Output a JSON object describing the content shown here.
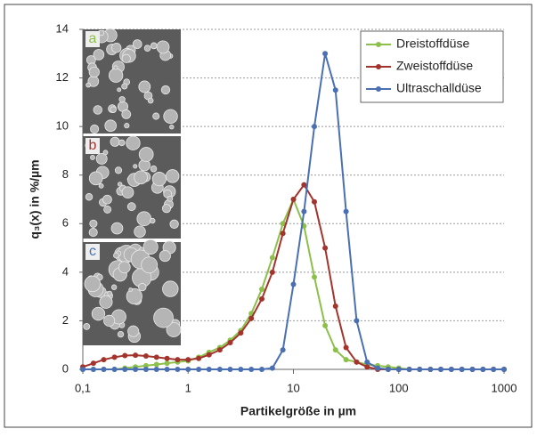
{
  "chart_data": {
    "type": "line",
    "x_label": "Partikelgröße in µm",
    "y_label": "q₃(x) in %/µm",
    "x": [
      0.1,
      0.126,
      0.158,
      0.2,
      0.251,
      0.316,
      0.398,
      0.501,
      0.631,
      0.794,
      1,
      1.26,
      1.58,
      2,
      2.51,
      3.16,
      3.98,
      5.01,
      6.31,
      7.94,
      10,
      12.6,
      15.8,
      20,
      25.1,
      31.6,
      39.8,
      50.1,
      63.1,
      79.4,
      100,
      126,
      158,
      200,
      251,
      316,
      398,
      501,
      631,
      794,
      1000
    ],
    "series": [
      {
        "name": "Dreistoffdüse",
        "color": "#8dbf4b",
        "values": [
          0,
          0,
          0,
          0,
          0.05,
          0.1,
          0.15,
          0.2,
          0.25,
          0.3,
          0.35,
          0.5,
          0.7,
          0.9,
          1.2,
          1.6,
          2.3,
          3.3,
          4.6,
          6.0,
          7.0,
          5.9,
          3.8,
          1.8,
          0.8,
          0.4,
          0.3,
          0.2,
          0.15,
          0.1,
          0.05,
          0,
          0,
          0,
          0,
          0,
          0,
          0,
          0,
          0,
          0
        ]
      },
      {
        "name": "Zweistoffdüse",
        "color": "#a3332d",
        "values": [
          0.1,
          0.25,
          0.4,
          0.5,
          0.57,
          0.58,
          0.55,
          0.5,
          0.45,
          0.4,
          0.4,
          0.45,
          0.6,
          0.8,
          1.1,
          1.5,
          2.1,
          2.9,
          4.0,
          5.6,
          7.0,
          7.6,
          6.9,
          5.0,
          2.6,
          0.9,
          0.3,
          0.1,
          0,
          0,
          0,
          0,
          0,
          0,
          0,
          0,
          0,
          0,
          0,
          0,
          0
        ]
      },
      {
        "name": "Ultraschalldüse",
        "color": "#4a6fb2",
        "values": [
          0,
          0,
          0,
          0,
          0,
          0,
          0,
          0,
          0,
          0,
          0,
          0,
          0,
          0,
          0,
          0,
          0,
          0,
          0.05,
          0.8,
          3.5,
          6.5,
          10.0,
          13.0,
          11.5,
          6.5,
          2.0,
          0.3,
          0.05,
          0,
          0,
          0,
          0,
          0,
          0,
          0,
          0,
          0,
          0,
          0,
          0
        ]
      }
    ],
    "x_log": true,
    "xlim": [
      0.1,
      1000
    ],
    "xticks": [
      {
        "value": 0.1,
        "label": "0,1"
      },
      1,
      10,
      100,
      1000
    ],
    "ylim": [
      0,
      14
    ],
    "yticks": [
      0,
      2,
      4,
      6,
      8,
      10,
      12,
      14
    ],
    "grid": true,
    "legend": "upper right",
    "panel_labels": [
      "a",
      "b",
      "c"
    ]
  }
}
